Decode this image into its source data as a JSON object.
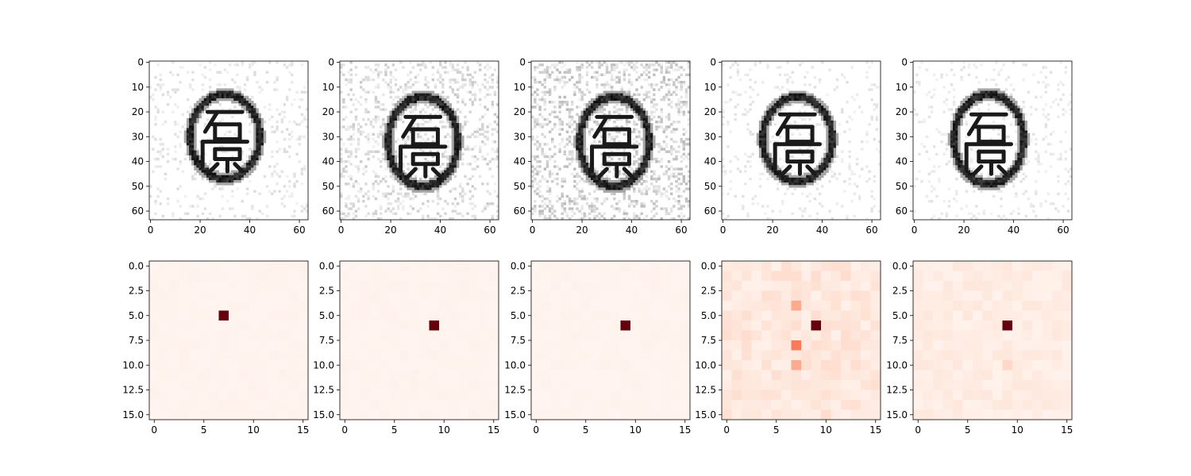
{
  "chart_data": {
    "top_row": {
      "type": "image",
      "colormap": "gray_r",
      "x_ticks": [
        "0",
        "20",
        "40",
        "60"
      ],
      "y_ticks": [
        "0",
        "10",
        "20",
        "30",
        "40",
        "50",
        "60"
      ],
      "xlim": [
        -0.5,
        63.5
      ],
      "ylim": [
        63.5,
        -0.5
      ],
      "panels": [
        {
          "ellipse_center": [
            30,
            30
          ],
          "ellipse_radii": [
            14,
            17
          ],
          "noise": 0.12
        },
        {
          "ellipse_center": [
            33,
            32
          ],
          "ellipse_radii": [
            14,
            18
          ],
          "noise": 0.22
        },
        {
          "ellipse_center": [
            33,
            32
          ],
          "ellipse_radii": [
            14,
            18
          ],
          "noise": 0.3
        },
        {
          "ellipse_center": [
            30,
            31
          ],
          "ellipse_radii": [
            14,
            17
          ],
          "noise": 0.1
        },
        {
          "ellipse_center": [
            30,
            31
          ],
          "ellipse_radii": [
            14,
            18
          ],
          "noise": 0.09
        }
      ]
    },
    "bottom_row": {
      "type": "heatmap",
      "colormap": "Reds",
      "grid_size": 16,
      "x_ticks": [
        "0",
        "5",
        "10",
        "15"
      ],
      "y_ticks": [
        "0.0",
        "2.5",
        "5.0",
        "7.5",
        "10.0",
        "12.5",
        "15.0"
      ],
      "xlim": [
        -0.5,
        15.5
      ],
      "ylim": [
        15.5,
        -0.5
      ],
      "panels": [
        {
          "peak": {
            "row": 5,
            "col": 7
          },
          "background": 0.01,
          "secondary": []
        },
        {
          "peak": {
            "row": 6,
            "col": 9
          },
          "background": 0.01,
          "secondary": []
        },
        {
          "peak": {
            "row": 6,
            "col": 9
          },
          "background": 0.01,
          "secondary": []
        },
        {
          "peak": {
            "row": 6,
            "col": 9
          },
          "background": 0.08,
          "secondary": [
            {
              "row": 4,
              "col": 7,
              "value": 0.3
            },
            {
              "row": 8,
              "col": 7,
              "value": 0.45
            },
            {
              "row": 10,
              "col": 7,
              "value": 0.3
            }
          ]
        },
        {
          "peak": {
            "row": 6,
            "col": 9
          },
          "background": 0.05,
          "secondary": [
            {
              "row": 10,
              "col": 9,
              "value": 0.15
            }
          ]
        }
      ]
    }
  }
}
